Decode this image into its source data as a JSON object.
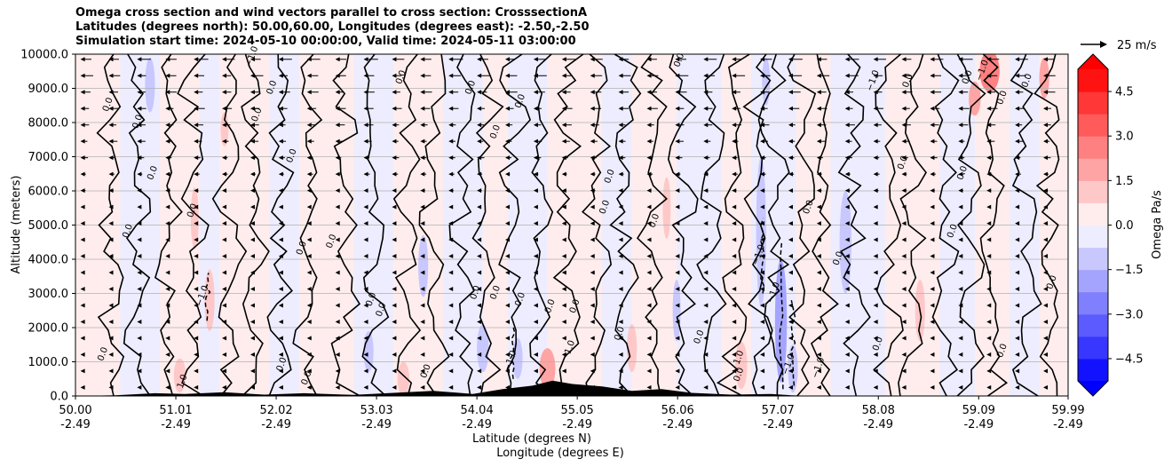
{
  "title_lines": [
    "Omega cross section and wind vectors parallel to cross section: CrosssectionA",
    "Latitudes (degrees north): 50.00,60.00, Longitudes (degrees east): -2.50,-2.50",
    "Simulation start time: 2024-05-10 00:00:00, Valid time: 2024-05-11 03:00:00"
  ],
  "chart_data": {
    "type": "heatmap",
    "subtype": "filled contour cross section with contour lines and wind vectors",
    "y_axis": {
      "label": "Altitude (meters)",
      "ylim": [
        0,
        10000
      ],
      "ticks": [
        "0.0",
        "1000.0",
        "2000.0",
        "3000.0",
        "4000.0",
        "5000.0",
        "6000.0",
        "7000.0",
        "8000.0",
        "9000.0",
        "10000.0"
      ],
      "tick_values": [
        0,
        1000,
        2000,
        3000,
        4000,
        5000,
        6000,
        7000,
        8000,
        9000,
        10000
      ]
    },
    "x_axis": {
      "label_line1": "Latitude (degrees N)",
      "label_line2": "Longitude (degrees E)",
      "xlim": [
        50.0,
        59.99
      ],
      "ticks": [
        {
          "lat": "50.00",
          "lon": "-2.49",
          "value": 50.0
        },
        {
          "lat": "51.01",
          "lon": "-2.49",
          "value": 51.01
        },
        {
          "lat": "52.02",
          "lon": "-2.49",
          "value": 52.02
        },
        {
          "lat": "53.03",
          "lon": "-2.49",
          "value": 53.03
        },
        {
          "lat": "54.04",
          "lon": "-2.49",
          "value": 54.04
        },
        {
          "lat": "55.05",
          "lon": "-2.49",
          "value": 55.05
        },
        {
          "lat": "56.06",
          "lon": "-2.49",
          "value": 56.06
        },
        {
          "lat": "57.07",
          "lon": "-2.49",
          "value": 57.07
        },
        {
          "lat": "58.08",
          "lon": "-2.49",
          "value": 58.08
        },
        {
          "lat": "59.09",
          "lon": "-2.49",
          "value": 59.09
        },
        {
          "lat": "59.99",
          "lon": "-2.49",
          "value": 59.99
        }
      ]
    },
    "grid": "horizontal",
    "colorbar": {
      "label": "Omega Pa/s",
      "range": [
        -5.25,
        5.25
      ],
      "ticks": [
        "4.5",
        "3.0",
        "1.5",
        "0.0",
        "−1.5",
        "−3.0",
        "−4.5"
      ],
      "tick_values": [
        4.5,
        3.0,
        1.5,
        0.0,
        -1.5,
        -3.0,
        -4.5
      ],
      "extend": "both",
      "colormap": "bwr"
    },
    "quiver_key": {
      "label": "25 m/s",
      "value": 25
    },
    "contour_labels": [
      {
        "text": "0.0",
        "lat": 50.35,
        "alt": 8500
      },
      {
        "text": "0.0",
        "lat": 50.55,
        "alt": 4800
      },
      {
        "text": "0.0",
        "lat": 50.65,
        "alt": 8000
      },
      {
        "text": "0.0",
        "lat": 50.8,
        "alt": 6500
      },
      {
        "text": "0.0",
        "lat": 50.3,
        "alt": 1200
      },
      {
        "text": "0.0",
        "lat": 51.2,
        "alt": 5400
      },
      {
        "text": "0.0",
        "lat": 51.85,
        "alt": 8200
      },
      {
        "text": "0.0",
        "lat": 52.0,
        "alt": 9000
      },
      {
        "text": "0.0",
        "lat": 52.2,
        "alt": 7000
      },
      {
        "text": "0.0",
        "lat": 52.3,
        "alt": 4300
      },
      {
        "text": "0.0",
        "lat": 52.6,
        "alt": 4500
      },
      {
        "text": "0.0",
        "lat": 52.35,
        "alt": 500
      },
      {
        "text": "0.0",
        "lat": 52.1,
        "alt": 900
      },
      {
        "text": "0.0",
        "lat": 53.0,
        "alt": 2800
      },
      {
        "text": "0.0",
        "lat": 53.1,
        "alt": 2500
      },
      {
        "text": "0.0",
        "lat": 53.3,
        "alt": 9300
      },
      {
        "text": "0.0",
        "lat": 53.55,
        "alt": 700
      },
      {
        "text": "0.0",
        "lat": 54.0,
        "alt": 9000
      },
      {
        "text": "0.0",
        "lat": 54.05,
        "alt": 3000
      },
      {
        "text": "0.0",
        "lat": 54.25,
        "alt": 7700
      },
      {
        "text": "0.0",
        "lat": 54.25,
        "alt": 3000
      },
      {
        "text": "0.0",
        "lat": 54.5,
        "alt": 8600
      },
      {
        "text": "0.0",
        "lat": 54.5,
        "alt": 2800
      },
      {
        "text": "0.0",
        "lat": 54.8,
        "alt": 2600
      },
      {
        "text": "0.0",
        "lat": 55.05,
        "alt": 2600
      },
      {
        "text": "0.0",
        "lat": 55.35,
        "alt": 5500
      },
      {
        "text": "0.0",
        "lat": 55.4,
        "alt": 6400
      },
      {
        "text": "0.0",
        "lat": 55.85,
        "alt": 5100
      },
      {
        "text": "0.0",
        "lat": 56.1,
        "alt": 9800
      },
      {
        "text": "0.0",
        "lat": 55.5,
        "alt": 1800
      },
      {
        "text": "0.0",
        "lat": 56.3,
        "alt": 1700
      },
      {
        "text": "0.0",
        "lat": 56.7,
        "alt": 600
      },
      {
        "text": "0.0",
        "lat": 57.4,
        "alt": 5500
      },
      {
        "text": "0.0",
        "lat": 57.7,
        "alt": 4000
      },
      {
        "text": "0.0",
        "lat": 58.1,
        "alt": 1500
      },
      {
        "text": "0.0",
        "lat": 58.35,
        "alt": 6800
      },
      {
        "text": "0.0",
        "lat": 58.4,
        "alt": 9200
      },
      {
        "text": "0.0",
        "lat": 58.85,
        "alt": 4800
      },
      {
        "text": "0.0",
        "lat": 58.95,
        "alt": 6500
      },
      {
        "text": "0.0",
        "lat": 59.0,
        "alt": 9300
      },
      {
        "text": "0.0",
        "lat": 59.35,
        "alt": 8700
      },
      {
        "text": "0.0",
        "lat": 59.6,
        "alt": 9200
      },
      {
        "text": "0.0",
        "lat": 59.35,
        "alt": 1300
      },
      {
        "text": "0.0",
        "lat": 59.85,
        "alt": 3300
      },
      {
        "text": "1.0",
        "lat": 51.1,
        "alt": 400
      },
      {
        "text": "1.0",
        "lat": 55.0,
        "alt": 1400
      },
      {
        "text": "1.0",
        "lat": 56.7,
        "alt": 1100
      },
      {
        "text": "−1.0",
        "lat": 51.8,
        "alt": 9900
      },
      {
        "text": "−1.0",
        "lat": 51.3,
        "alt": 2900
      },
      {
        "text": "−1.0",
        "lat": 56.9,
        "alt": 4100
      },
      {
        "text": "−1.0",
        "lat": 57.05,
        "alt": 3000
      },
      {
        "text": "−1.0",
        "lat": 57.2,
        "alt": 900
      },
      {
        "text": "−1.0",
        "lat": 57.5,
        "alt": 800
      },
      {
        "text": "−1.0",
        "lat": 58.05,
        "alt": 9200
      },
      {
        "text": "−1.0",
        "lat": 59.15,
        "alt": 9500
      },
      {
        "text": "−1.0",
        "lat": 54.4,
        "alt": 1000
      }
    ]
  }
}
